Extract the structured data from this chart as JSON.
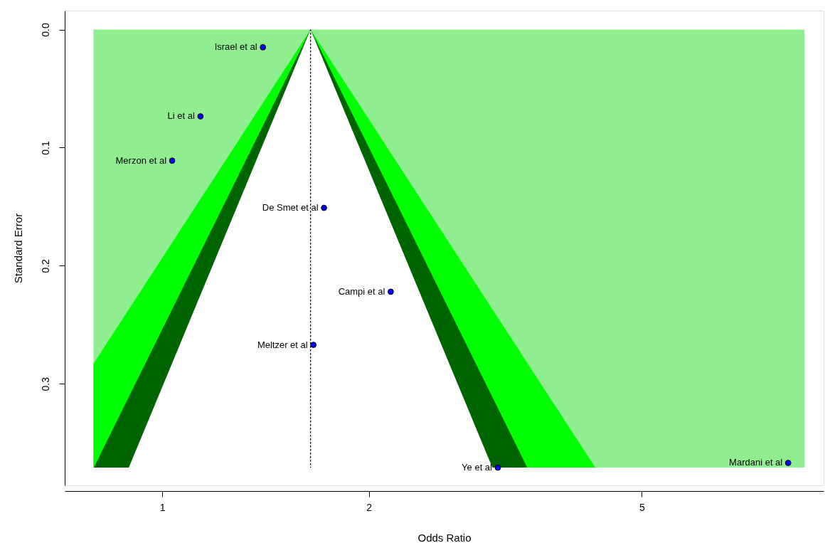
{
  "chart_data": {
    "type": "scatter",
    "xlabel": "Odds Ratio",
    "ylabel": "Standard Error",
    "log": "x",
    "grid": false,
    "xlim": [
      0.721,
      9.2
    ],
    "ylim": [
      0.386,
      -0.016
    ],
    "xticks": [
      1,
      2,
      5
    ],
    "yticks": [
      {
        "value": 0,
        "label": "0.0"
      },
      {
        "value": 0.1,
        "label": "0.1"
      },
      {
        "value": 0.2,
        "label": "0.2"
      },
      {
        "value": 0.3,
        "label": "0.3"
      }
    ],
    "series": [
      {
        "type": "area",
        "color": "#90ee90",
        "x": [
          0.794,
          8.63,
          8.63,
          0.794
        ],
        "values": [
          0,
          0,
          0.371,
          0.371
        ]
      },
      {
        "type": "area",
        "color": "#00ff00",
        "x": [
          0.794,
          1.645,
          4.278,
          0.794
        ],
        "values": [
          0.283,
          0,
          0.371,
          0.371
        ]
      },
      {
        "type": "area",
        "color": "#006400",
        "x": [
          0.795,
          1.645,
          3.404
        ],
        "values": [
          0.371,
          0,
          0.371
        ]
      },
      {
        "type": "area",
        "color": "#ffffff",
        "x": [
          0.894,
          1.645,
          3.028
        ],
        "values": [
          0.371,
          0,
          0.371
        ]
      },
      {
        "type": "line",
        "color": "#000000",
        "line_style": "dotted",
        "x": [
          1.645,
          1.645
        ],
        "values": [
          0,
          0.371
        ]
      },
      {
        "type": "scatter",
        "color": "#0000ff",
        "marker": "circle",
        "x": [
          1.402,
          1.137,
          1.034,
          1.721,
          2.153,
          1.661,
          3.084,
          8.17
        ],
        "values": [
          0.015,
          0.0735,
          0.111,
          0.151,
          0.222,
          0.267,
          0.371,
          0.367
        ]
      }
    ],
    "annotations": [
      {
        "text": "Israel et al",
        "x": 1.402,
        "y": 0.015
      },
      {
        "text": "Li et al",
        "x": 1.137,
        "y": 0.0735
      },
      {
        "text": "Merzon et al",
        "x": 1.034,
        "y": 0.111
      },
      {
        "text": "De Smet et al",
        "x": 1.721,
        "y": 0.151
      },
      {
        "text": "Campi et al",
        "x": 2.153,
        "y": 0.222
      },
      {
        "text": "Meltzer et al",
        "x": 1.661,
        "y": 0.267
      },
      {
        "text": "Ye et al",
        "x": 3.084,
        "y": 0.371
      },
      {
        "text": "Mardani et al",
        "x": 8.17,
        "y": 0.367
      }
    ]
  }
}
